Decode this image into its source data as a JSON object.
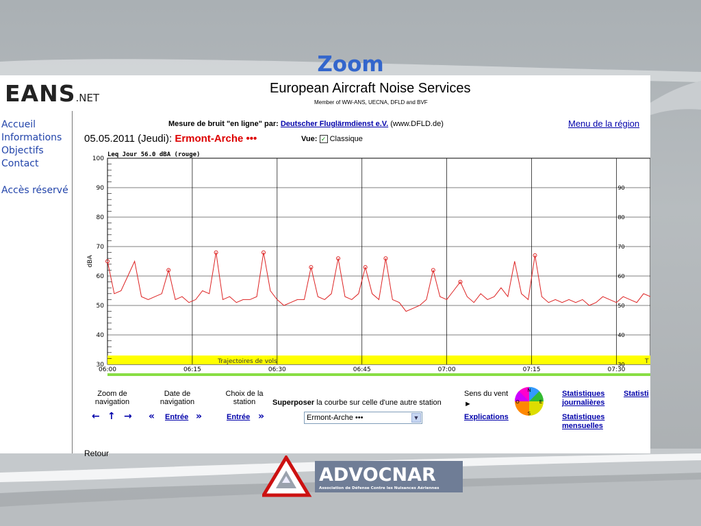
{
  "slide": {
    "title": "Zoom"
  },
  "header": {
    "logo_main": "EANS",
    "logo_suffix": ".NET",
    "site_title": "European Aircraft Noise Services",
    "site_subtitle": "Member of WW-ANS, UECNA, DFLD and BVF"
  },
  "sidebar": {
    "items": [
      {
        "label": "Accueil"
      },
      {
        "label": "Informations"
      },
      {
        "label": "Objectifs"
      },
      {
        "label": "Contact"
      },
      {
        "label": "Accès réservé"
      }
    ]
  },
  "measure": {
    "prefix": "Mesure de bruit \"en ligne\" par:",
    "link": "Deutscher Fluglärmdienst e.V.",
    "suffix": "(www.DFLD.de)"
  },
  "region_link": "Menu de la région",
  "date_label": "05.05.2011 (Jeudi):",
  "station": "Ermont-Arche •••",
  "vue": {
    "label": "Vue:",
    "option": "Classique",
    "checked": true
  },
  "chart_data": {
    "type": "line",
    "title": "Leq Jour 56.0 dBA (rouge)",
    "ylabel": "dBA",
    "ylim": [
      30,
      100
    ],
    "yticks": [
      30,
      40,
      50,
      60,
      70,
      80,
      90,
      100
    ],
    "secondary_yticks": [
      30,
      40,
      50,
      60,
      70,
      80,
      90
    ],
    "xticks": [
      "06:00",
      "06:15",
      "06:30",
      "06:45",
      "07:00",
      "07:15",
      "07:30"
    ],
    "xlim_minutes": [
      0,
      32
    ],
    "band_label": "Trajectoires de vols",
    "band_label_right": "T",
    "color": "#dd2222",
    "series": [
      {
        "x": [
          0,
          0.4,
          0.8,
          1.2,
          1.6,
          2.0,
          2.4,
          2.8,
          3.2,
          3.6,
          4.0,
          4.4,
          4.8,
          5.2,
          5.6,
          6.0,
          6.4,
          6.8,
          7.2,
          7.6,
          8.0,
          8.4,
          8.8,
          9.2,
          9.6,
          10.0,
          10.4,
          10.8,
          11.2,
          11.6,
          12.0,
          12.4,
          12.8,
          13.2,
          13.6,
          14.0,
          14.4,
          14.8,
          15.2,
          15.6,
          16.0,
          16.4,
          16.8,
          17.2,
          17.6,
          18.0,
          18.4,
          18.8,
          19.2,
          19.6,
          20.0,
          20.4,
          20.8,
          21.2,
          21.6,
          22.0,
          22.4,
          22.8,
          23.2,
          23.6,
          24.0,
          24.4,
          24.8,
          25.2,
          25.6,
          26.0,
          26.4,
          26.8,
          27.2,
          27.6,
          28.0,
          28.4,
          28.8,
          29.2,
          29.6,
          30.0,
          30.4,
          30.8,
          31.2,
          31.6,
          32.0
        ],
        "values": [
          65,
          54,
          55,
          60,
          65,
          53,
          52,
          53,
          54,
          62,
          52,
          53,
          51,
          52,
          55,
          54,
          68,
          52,
          53,
          51,
          52,
          52,
          53,
          68,
          55,
          52,
          50,
          51,
          52,
          52,
          63,
          53,
          52,
          54,
          66,
          53,
          52,
          54,
          63,
          54,
          52,
          66,
          52,
          51,
          48,
          49,
          50,
          52,
          62,
          53,
          52,
          55,
          58,
          53,
          51,
          54,
          52,
          53,
          56,
          53,
          65,
          54,
          52,
          67,
          53,
          51,
          52,
          51,
          52,
          51,
          52,
          50,
          51,
          53,
          52,
          51,
          53,
          52,
          51,
          54,
          53
        ],
        "marked": [
          65,
          62,
          68,
          68,
          63,
          66,
          67,
          62,
          66,
          67,
          63,
          58,
          70
        ]
      }
    ]
  },
  "controls": {
    "zoom": "Zoom de navigation",
    "date": "Date de navigation",
    "station": "Choix de la station",
    "superposer_bold": "Superposer",
    "superposer_rest": "la courbe sur celle d'une autre station",
    "wind": "Sens du vent",
    "wind_play": "►",
    "stats_journalieres": "Statistiques journalières",
    "stats_mensuelles": "Statistiques mensuelles",
    "stats_cut": "Statisti",
    "explications": "Explications",
    "entree": "Entrée",
    "select_value": "Ermont-Arche •••",
    "compass": [
      "N",
      "E",
      "S",
      "O"
    ]
  },
  "retour": "Retour",
  "advocnar": {
    "name": "ADVOCNAR",
    "tagline": "Association de Défense Contre les Nuisances Aériennes"
  }
}
